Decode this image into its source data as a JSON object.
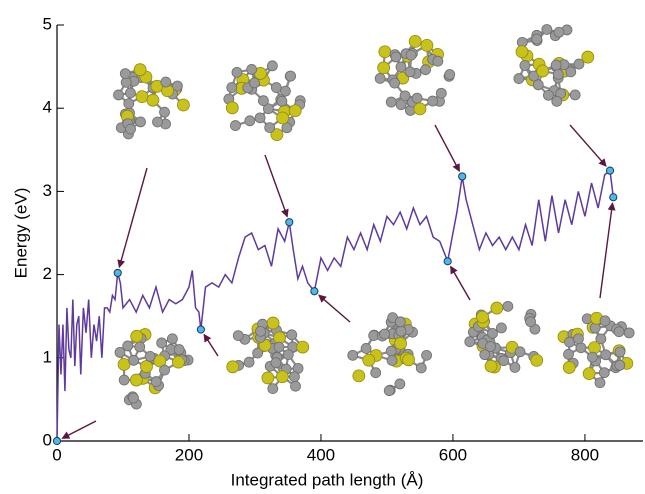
{
  "chart_data": {
    "type": "line",
    "xlabel": "Integrated path length (Å)",
    "ylabel": "Energy (eV)",
    "xlim": [
      0,
      888
    ],
    "ylim": [
      0,
      5
    ],
    "xticks": [
      0,
      200,
      400,
      600,
      800
    ],
    "yticks": [
      0,
      1,
      2,
      3,
      4,
      5
    ],
    "color": "#5e3a9e",
    "marker_color": "#4db6ea",
    "x": [
      0,
      3,
      6,
      9,
      12,
      15,
      18,
      21,
      24,
      27,
      30,
      33,
      36,
      40,
      44,
      48,
      52,
      56,
      60,
      64,
      68,
      72,
      76,
      80,
      84,
      88,
      92,
      96,
      100,
      110,
      120,
      130,
      140,
      150,
      160,
      170,
      180,
      190,
      200,
      205,
      210,
      215,
      218,
      225,
      235,
      245,
      255,
      265,
      275,
      285,
      295,
      305,
      315,
      325,
      335,
      345,
      352,
      358,
      365,
      372,
      380,
      390,
      400,
      410,
      420,
      430,
      440,
      450,
      460,
      470,
      480,
      490,
      500,
      510,
      520,
      530,
      540,
      550,
      560,
      570,
      580,
      592,
      600,
      606,
      614,
      620,
      630,
      640,
      650,
      660,
      670,
      680,
      690,
      700,
      710,
      720,
      730,
      740,
      750,
      760,
      770,
      780,
      790,
      800,
      810,
      820,
      830,
      838,
      843
    ],
    "values": [
      0,
      1.4,
      0.8,
      1.4,
      0.6,
      1.6,
      1.1,
      1.0,
      1.7,
      0.9,
      1.4,
      1.5,
      0.8,
      1.6,
      1.3,
      1.7,
      1.0,
      1.4,
      1.2,
      1.5,
      1.0,
      1.6,
      1.6,
      1.55,
      1.75,
      1.7,
      2.02,
      1.9,
      1.6,
      1.7,
      1.55,
      1.75,
      1.6,
      1.85,
      1.55,
      1.7,
      1.65,
      1.7,
      1.85,
      2.05,
      1.6,
      1.55,
      1.34,
      1.85,
      1.9,
      1.85,
      2.0,
      1.9,
      2.2,
      2.45,
      2.5,
      2.3,
      2.35,
      2.1,
      2.55,
      2.4,
      2.63,
      2.3,
      1.95,
      2.1,
      1.9,
      1.8,
      2.2,
      2.05,
      2.2,
      2.1,
      2.45,
      2.3,
      2.5,
      2.3,
      2.6,
      2.4,
      2.7,
      2.6,
      2.75,
      2.55,
      2.8,
      2.6,
      2.7,
      2.45,
      2.4,
      2.16,
      2.5,
      2.75,
      3.18,
      2.9,
      2.6,
      2.3,
      2.5,
      2.35,
      2.45,
      2.3,
      2.45,
      2.3,
      2.6,
      2.35,
      2.9,
      2.4,
      2.95,
      2.5,
      2.9,
      2.6,
      3.0,
      2.7,
      3.1,
      2.8,
      3.2,
      3.25,
      2.93
    ],
    "markers": {
      "x": [
        0,
        92,
        218,
        352,
        390,
        592,
        614,
        838,
        843
      ],
      "values": [
        0,
        2.02,
        1.34,
        2.63,
        1.8,
        2.16,
        3.18,
        3.25,
        2.93
      ]
    }
  }
}
